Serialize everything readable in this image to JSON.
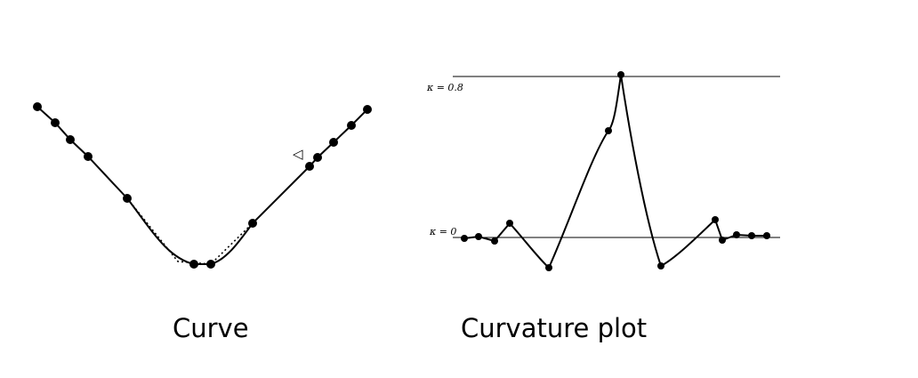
{
  "left_panel": {
    "caption": "Curve",
    "marker_symbol": "◁"
  },
  "right_panel": {
    "caption": "Curvature plot",
    "upper_label": "κ = 0.8",
    "lower_label": "κ = 0"
  },
  "colors": {
    "ink": "#000000",
    "background": "#ffffff"
  }
}
